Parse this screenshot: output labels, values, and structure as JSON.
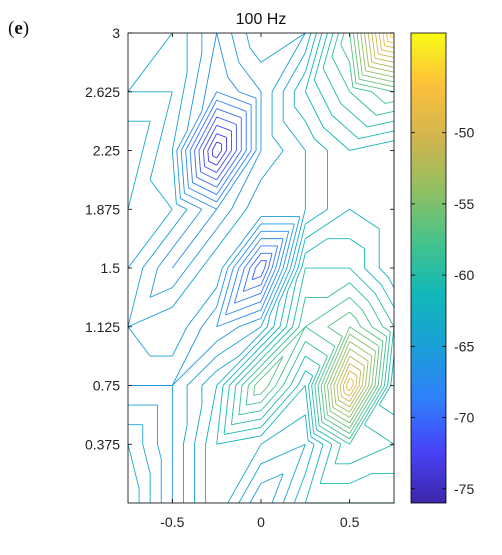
{
  "panel_label_open": "(",
  "panel_label_letter": "e",
  "panel_label_close": ")",
  "chart_data": {
    "type": "contour",
    "title": "100 Hz",
    "xlabel": "",
    "ylabel": "",
    "xlim": [
      -0.75,
      0.75
    ],
    "ylim": [
      0,
      3
    ],
    "x_ticks": [
      -0.5,
      0,
      0.5
    ],
    "x_tick_labels": [
      "-0.5",
      "0",
      "0.5"
    ],
    "y_ticks": [
      0.375,
      0.75,
      1.125,
      1.5,
      1.875,
      2.25,
      2.625,
      3
    ],
    "y_tick_labels": [
      "0.375",
      "0.75",
      "1.125",
      "1.5",
      "1.875",
      "2.25",
      "2.625",
      "3"
    ],
    "x": [
      -0.75,
      -0.5,
      -0.25,
      0,
      0.25,
      0.5,
      0.75
    ],
    "y": [
      0,
      0.375,
      0.75,
      1.125,
      1.5,
      1.875,
      2.25,
      2.625,
      3
    ],
    "z": [
      [
        -62,
        -66,
        -62,
        -66,
        -62,
        -62,
        -62
      ],
      [
        -63,
        -66,
        -62,
        -63,
        -64,
        -59,
        -60
      ],
      [
        -66,
        -66,
        -63,
        -56,
        -62,
        -48,
        -62
      ],
      [
        -65,
        -64,
        -67,
        -65,
        -58,
        -56,
        -60
      ],
      [
        -64,
        -67,
        -64,
        -72,
        -60,
        -60,
        -63
      ],
      [
        -63,
        -64,
        -67,
        -64,
        -64,
        -62,
        -63
      ],
      [
        -62,
        -65,
        -75,
        -66,
        -64,
        -62,
        -63
      ],
      [
        -64,
        -64,
        -68,
        -66,
        -62,
        -59,
        -57
      ],
      [
        -63,
        -64,
        -67,
        -64,
        -65,
        -57,
        -45
      ]
    ],
    "levels_start": -76,
    "levels_step": 1,
    "colorbar": {
      "range": [
        -76,
        -43
      ],
      "ticks": [
        -75,
        -70,
        -65,
        -60,
        -55,
        -50
      ],
      "tick_labels": [
        "-75",
        "-70",
        "-65",
        "-60",
        "-55",
        "-50"
      ]
    },
    "colormap": [
      "#3e26a8",
      "#4743f8",
      "#2f80fb",
      "#1a9fd7",
      "#10b8b8",
      "#46c38b",
      "#92bf61",
      "#d2b54e",
      "#fcc03b",
      "#f9fb15"
    ],
    "grid": false
  }
}
